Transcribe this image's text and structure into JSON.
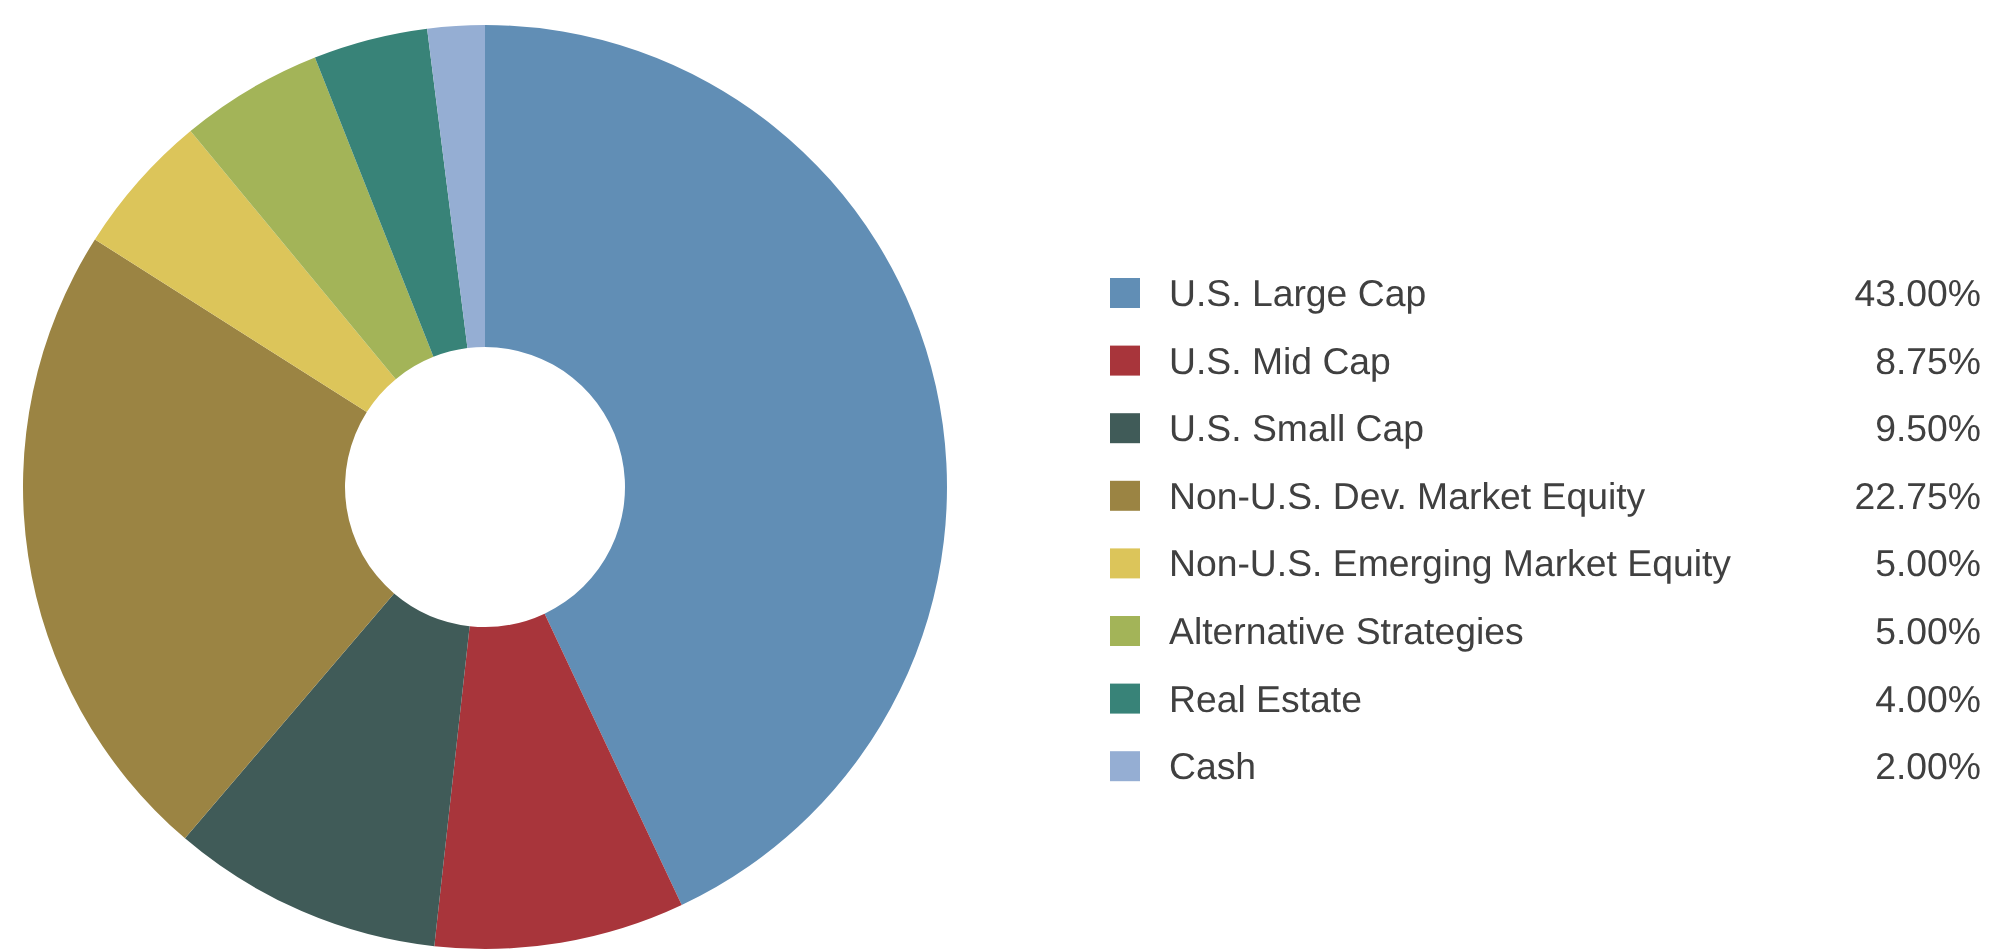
{
  "chart_data": {
    "type": "donut",
    "categories": [
      "U.S. Large Cap",
      "U.S. Mid Cap",
      "U.S. Small Cap",
      "Non-U.S. Dev. Market Equity",
      "Non-U.S. Emerging Market Equity",
      "Alternative Strategies",
      "Real Estate",
      "Cash"
    ],
    "values": [
      43.0,
      8.75,
      9.5,
      22.75,
      5.0,
      5.0,
      4.0,
      2.0
    ],
    "value_labels": [
      "43.00%",
      "8.75%",
      "9.50%",
      "22.75%",
      "5.00%",
      "5.00%",
      "4.00%",
      "2.00%"
    ],
    "colors": [
      "#618eb5",
      "#a8353b",
      "#405b58",
      "#9b8443",
      "#dcc55a",
      "#a3b458",
      "#388378",
      "#95aed3"
    ],
    "legend": "right"
  }
}
